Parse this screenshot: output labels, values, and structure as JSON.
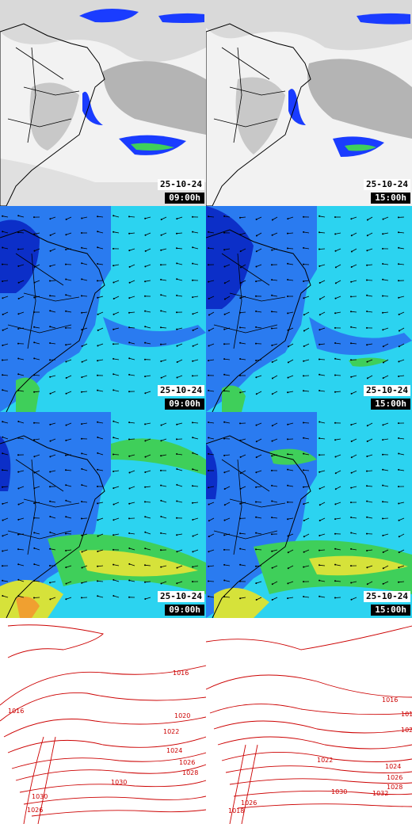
{
  "panels": [
    {
      "row": "satellite",
      "date": "25-10-24",
      "time": "09:00h"
    },
    {
      "row": "satellite",
      "date": "25-10-24",
      "time": "15:00h"
    },
    {
      "row": "wind-low",
      "date": "25-10-24",
      "time": "09:00h"
    },
    {
      "row": "wind-low",
      "date": "25-10-24",
      "time": "15:00h"
    },
    {
      "row": "wind-high",
      "date": "25-10-24",
      "time": "09:00h"
    },
    {
      "row": "wind-high",
      "date": "25-10-24",
      "time": "15:00h"
    },
    {
      "row": "pressure",
      "date": "",
      "time": ""
    },
    {
      "row": "pressure",
      "date": "",
      "time": ""
    }
  ],
  "isobars_left": [
    "1016",
    "1016",
    "1020",
    "1022",
    "1024",
    "1026",
    "1028",
    "1030",
    "1026",
    "1030"
  ],
  "isobars_right": [
    "1016",
    "101",
    "102",
    "1022",
    "1024",
    "1026",
    "1028",
    "1030",
    "1032",
    "1018",
    "1026"
  ],
  "colors": {
    "cloud": "#d9d9d9",
    "cloud_dark": "#9a9a9a",
    "convection": "#1a3cff",
    "wind_low": "#2cd3f0",
    "wind_mid": "#2a7bf0",
    "wind_high": "#0c2fc8",
    "wind_strong": "#d6e23a",
    "isobar": "#cc0000"
  }
}
